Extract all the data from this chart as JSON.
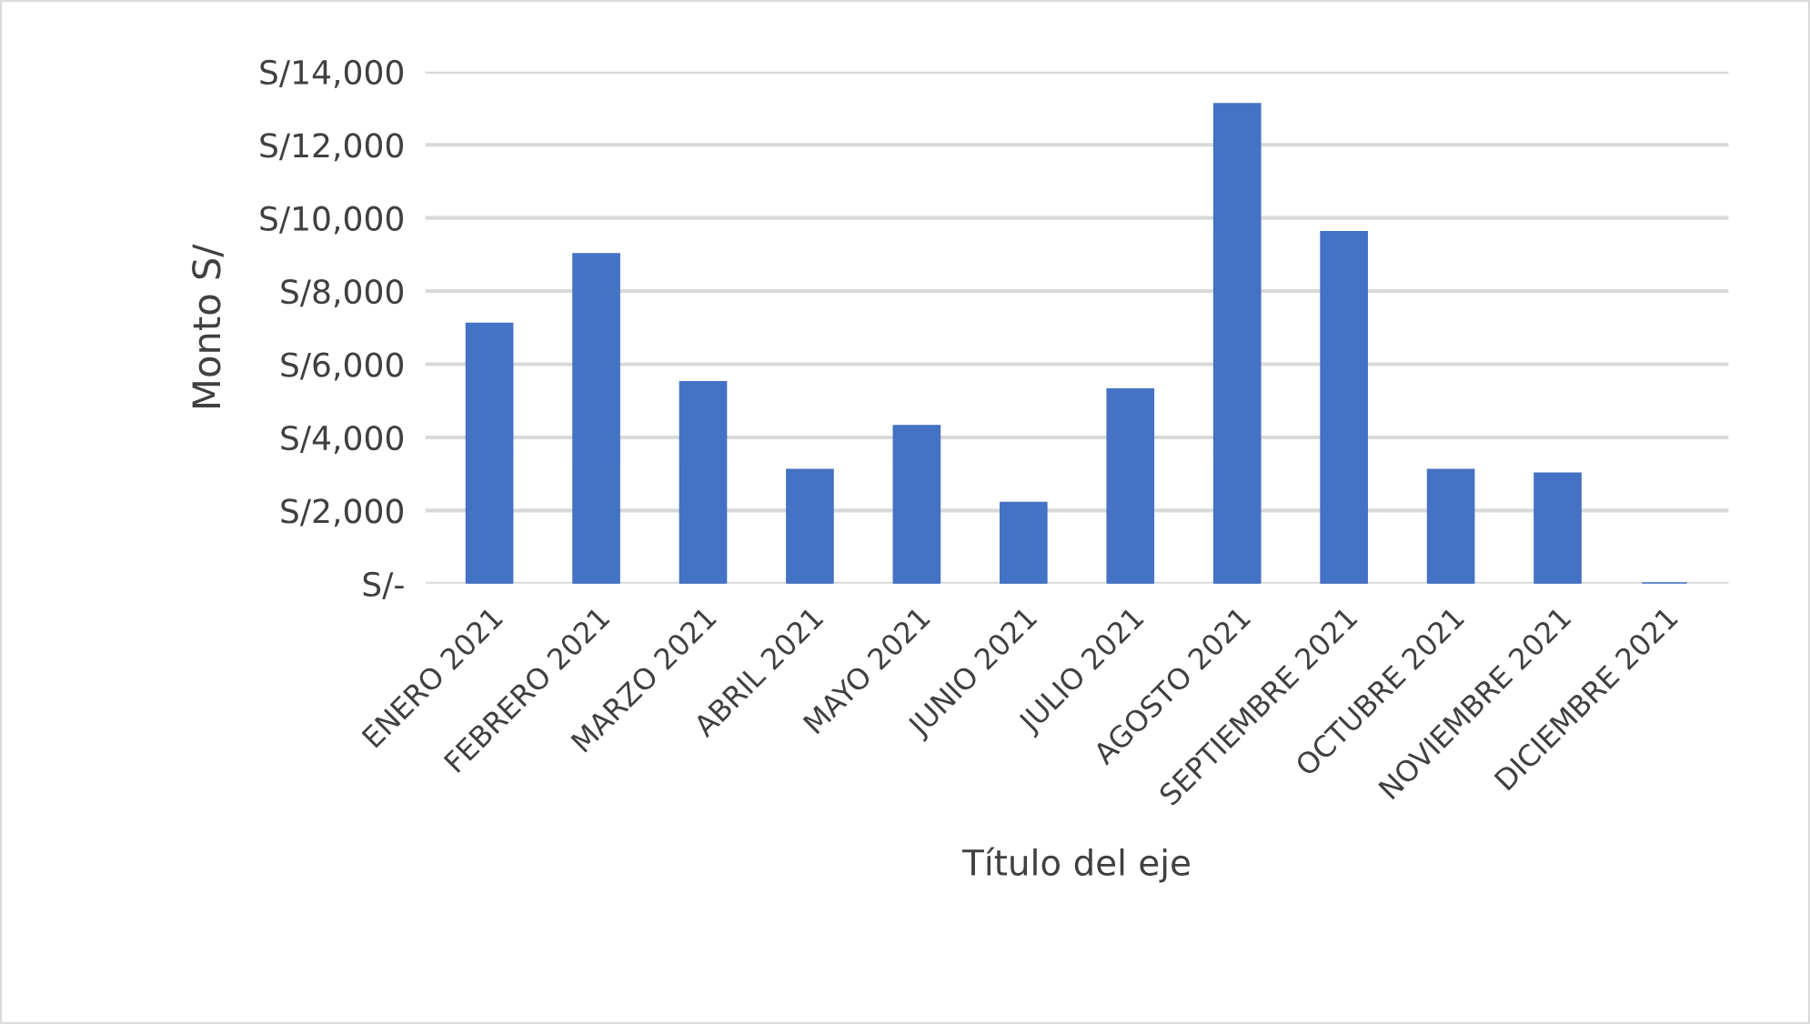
{
  "chart_data": {
    "type": "bar",
    "xlabel": "Título del eje",
    "ylabel": "Monto S/",
    "categories": [
      "ENERO 2021",
      "FEBRERO 2021",
      "MARZO 2021",
      "ABRIL 2021",
      "MAYO 2021",
      "JUNIO 2021",
      "JULIO 2021",
      "AGOSTO 2021",
      "SEPTIEMBRE 2021",
      "OCTUBRE 2021",
      "NOVIEMBRE 2021",
      "DICIEMBRE 2021"
    ],
    "values": [
      7100,
      9000,
      5500,
      3100,
      4300,
      2200,
      5300,
      13100,
      9600,
      3100,
      3000,
      0
    ],
    "color": "#4472c4",
    "ylim": [
      0,
      14000
    ],
    "yticks": [
      {
        "value": 0,
        "label": "S/-"
      },
      {
        "value": 2000,
        "label": "S/2,000"
      },
      {
        "value": 4000,
        "label": "S/4,000"
      },
      {
        "value": 6000,
        "label": "S/6,000"
      },
      {
        "value": 8000,
        "label": "S/8,000"
      },
      {
        "value": 10000,
        "label": "S/10,000"
      },
      {
        "value": 12000,
        "label": "S/12,000"
      },
      {
        "value": 14000,
        "label": "S/14,000"
      }
    ],
    "grid": "y",
    "legend": false
  }
}
